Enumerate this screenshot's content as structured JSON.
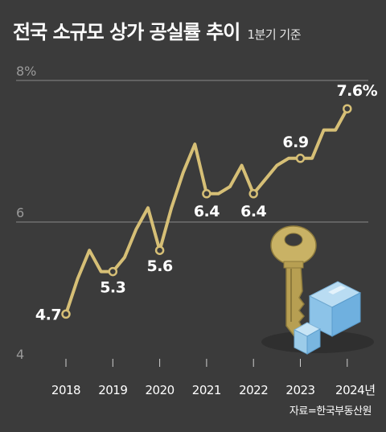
{
  "header": {
    "title": "전국 소규모 상가 공실률 추이",
    "subtitle": "1분기 기준"
  },
  "source": "자료=한국부동산원",
  "colors": {
    "background": "#3b3b3b",
    "line": "#d6bf76",
    "gridline": "#8a8a8a",
    "tick_text": "#9a9a9a",
    "label_text": "#ffffff"
  },
  "chart_data": {
    "type": "line",
    "title": "전국 소규모 상가 공실률 추이",
    "subtitle": "1분기 기준",
    "ylim": [
      4,
      8
    ],
    "y_ticks": [
      "8%",
      "6",
      "4"
    ],
    "x_ticks": [
      "2018",
      "2019",
      "2020",
      "2021",
      "2022",
      "2023",
      "2024년"
    ],
    "grid": "horizontal",
    "series": [
      {
        "x": [
          2018.0,
          2018.25,
          2018.5,
          2018.75,
          2019.0,
          2019.25,
          2019.5,
          2019.75,
          2020.0,
          2020.25,
          2020.5,
          2020.75,
          2021.0,
          2021.25,
          2021.5,
          2021.75,
          2022.0,
          2022.25,
          2022.5,
          2022.75,
          2023.0,
          2023.25,
          2023.5,
          2023.75,
          2024.0
        ],
        "values": [
          4.7,
          5.2,
          5.6,
          5.3,
          5.3,
          5.5,
          5.9,
          6.2,
          5.6,
          6.2,
          6.7,
          7.1,
          6.4,
          6.4,
          6.5,
          6.8,
          6.4,
          6.6,
          6.8,
          6.9,
          6.9,
          6.9,
          7.3,
          7.3,
          7.6
        ]
      }
    ],
    "data_labels": [
      {
        "x": 2018.0,
        "text": "4.7"
      },
      {
        "x": 2019.0,
        "text": "5.3"
      },
      {
        "x": 2020.0,
        "text": "5.6"
      },
      {
        "x": 2021.0,
        "text": "6.4"
      },
      {
        "x": 2022.0,
        "text": "6.4"
      },
      {
        "x": 2023.0,
        "text": "6.9"
      },
      {
        "x": 2024.0,
        "text": "7.6%"
      }
    ]
  }
}
